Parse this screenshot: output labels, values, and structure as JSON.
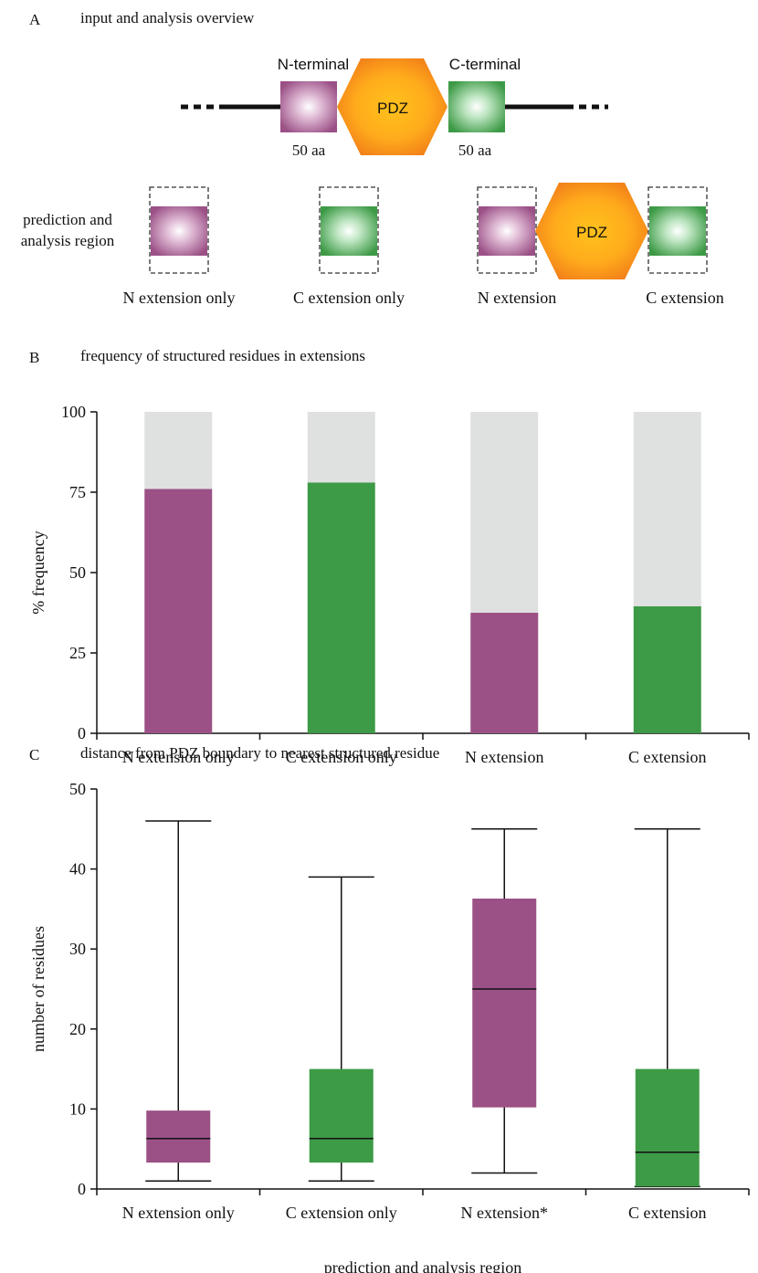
{
  "panel_a": {
    "letter": "A",
    "title": "input and analysis overview",
    "n_terminal_label": "N-terminal",
    "c_terminal_label": "C-terminal",
    "pdz_label": "PDZ",
    "n_length_label": "50 aa",
    "c_length_label": "50 aa",
    "region_label_line1": "prediction and",
    "region_label_line2": "analysis region",
    "group_labels": [
      "N extension only",
      "C extension only",
      "N extension",
      "C extension"
    ]
  },
  "colors": {
    "n_extension": "#9b5086",
    "c_extension": "#3d9a46",
    "remainder": "#dfe0e0",
    "pdz_outer": "#f07a18",
    "pdz_inner": "#ffc21c"
  },
  "panel_b": {
    "letter": "B",
    "title": "frequency of structured residues in extensions"
  },
  "panel_c": {
    "letter": "C",
    "title": "distance from PDZ boundary to nearest structured residue"
  },
  "chart_data": [
    {
      "type": "bar",
      "stacked": true,
      "categories": [
        "N extension only",
        "C extension only",
        "N extension",
        "C extension"
      ],
      "values": [
        76,
        78,
        37.5,
        39.5
      ],
      "total": 100,
      "bar_colors": [
        "#9b5086",
        "#3d9a46",
        "#9b5086",
        "#3d9a46"
      ],
      "ylabel": "% frequency",
      "ylim": [
        0,
        100
      ],
      "yticks": [
        0,
        25,
        50,
        75,
        100
      ],
      "grid": false
    },
    {
      "type": "box",
      "categories": [
        "N extension only",
        "C extension only",
        "N extension*",
        "C extension"
      ],
      "boxes": [
        {
          "min": 1,
          "q1": 3.3,
          "median": 6.3,
          "q3": 9.8,
          "max": 46
        },
        {
          "min": 1,
          "q1": 3.3,
          "median": 6.3,
          "q3": 15,
          "max": 39
        },
        {
          "min": 2,
          "q1": 10.2,
          "median": 25,
          "q3": 36.3,
          "max": 45
        },
        {
          "min": 0.3,
          "q1": 0.3,
          "median": 4.6,
          "q3": 15,
          "max": 45
        }
      ],
      "box_colors": [
        "#9b5086",
        "#3d9a46",
        "#9b5086",
        "#3d9a46"
      ],
      "ylabel": "number of residues",
      "xlabel": "prediction and analysis region",
      "ylim": [
        0,
        50
      ],
      "yticks": [
        0,
        10,
        20,
        30,
        40,
        50
      ],
      "grid": false
    }
  ]
}
